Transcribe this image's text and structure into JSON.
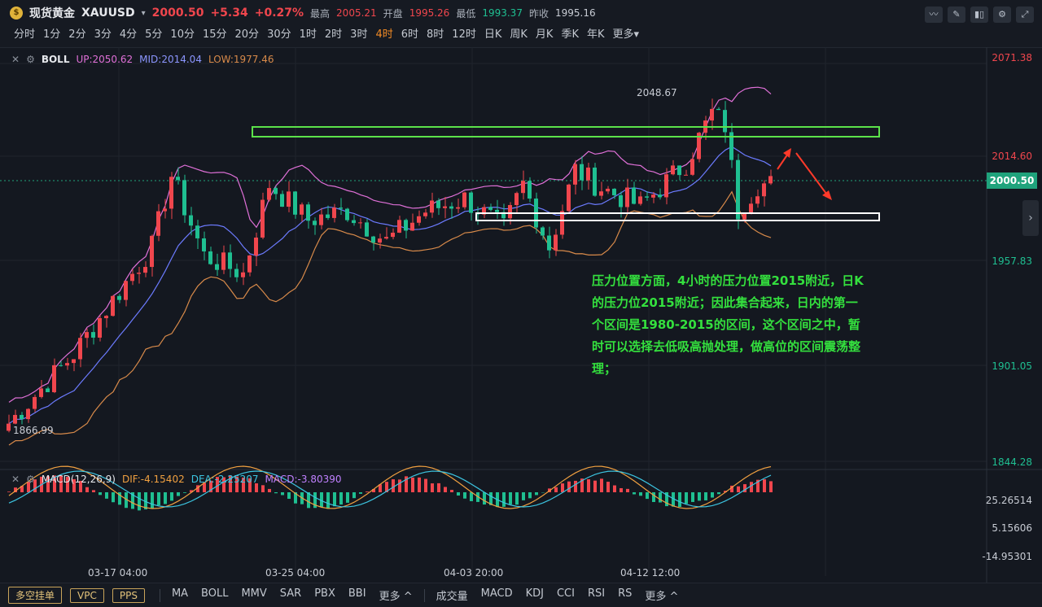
{
  "header": {
    "logo_glyph": "$",
    "symbol_name": "现货黄金",
    "symbol_code": "XAUUSD",
    "dropdown_glyph": "▾",
    "last_price": "2000.50",
    "change": "+5.34",
    "change_pct": "+0.27%",
    "high_label": "最高",
    "high_value": "2005.21",
    "open_label": "开盘",
    "open_value": "1995.26",
    "low_label": "最低",
    "low_value": "1993.37",
    "prevclose_label": "昨收",
    "prevclose_value": "1995.16"
  },
  "toolbar_icons": [
    "chart-style-icon",
    "draw-icon",
    "candle-type-icon",
    "settings-icon",
    "fullscreen-icon"
  ],
  "timeframes": [
    "分时",
    "1分",
    "2分",
    "3分",
    "4分",
    "5分",
    "10分",
    "15分",
    "20分",
    "30分",
    "1时",
    "2时",
    "3时",
    "4时",
    "6时",
    "8时",
    "12时",
    "日K",
    "周K",
    "月K",
    "季K",
    "年K",
    "更多▾"
  ],
  "active_timeframe": "4时",
  "boll": {
    "name": "BOLL",
    "up": "UP:2050.62",
    "mid": "MID:2014.04",
    "low": "LOW:1977.46",
    "colors": {
      "up": "#e070d8",
      "mid": "#6c7bff",
      "low": "#d88a4a"
    }
  },
  "price_axis": [
    "2071.38",
    "2014.60",
    "1957.83",
    "1901.05",
    "1844.28"
  ],
  "current_price_tag": "2000.50",
  "chart_labels": {
    "high_mark": "2048.67",
    "low_mark": "1866.99"
  },
  "annotation": "压力位置方面，4小时的压力位置2015附近，日K的压力位2015附近；因此集合起来，日内的第一个区间是1980-2015的区间，这个区间之中，暂时可以选择去低吸高抛处理，做高位的区间震荡整理；",
  "macd": {
    "name": "MACD(12,26,9)",
    "dif": "DIF:-4.15402",
    "dea": "DEA:-2.25207",
    "macd": "MACD:-3.80390",
    "axis": [
      "25.26514",
      "5.15606",
      "-14.95301"
    ]
  },
  "time_axis": [
    "03-17 04:00",
    "03-25 04:00",
    "04-03 20:00",
    "04-12 12:00"
  ],
  "bottom_bar": {
    "buttons": [
      "多空挂单",
      "VPC",
      "PPS"
    ],
    "main_indicators": [
      "MA",
      "BOLL",
      "MMV",
      "SAR",
      "PBX",
      "BBI",
      "更多 ^"
    ],
    "sub_indicators": [
      "成交量",
      "MACD",
      "KDJ",
      "CCI",
      "RSI",
      "RS",
      "更多 ^"
    ]
  },
  "colors": {
    "up": "#f0464d",
    "down": "#1fbf91",
    "bg": "#141820",
    "green_box": "#5ce24a",
    "white_box": "#ffffff",
    "arrow": "#ff3a2a"
  }
}
